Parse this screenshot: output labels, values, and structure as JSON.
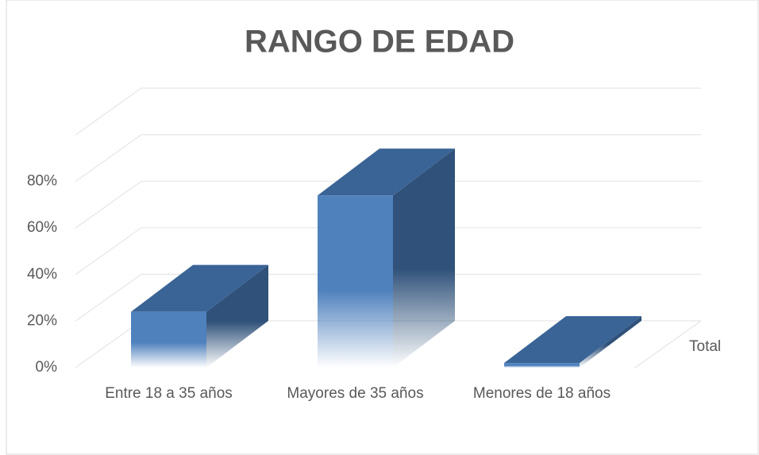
{
  "chart_data": {
    "type": "bar3d",
    "title": "RANGO DE EDAD",
    "categories": [
      "Entre 18 a 35 años",
      "Mayores de 35 años",
      "Menores de 18 años"
    ],
    "series": [
      {
        "name": "Total",
        "color": "#4f81bd",
        "values": [
          24,
          74,
          2
        ]
      }
    ],
    "ylim": [
      0,
      100
    ],
    "yticks": [
      {
        "value": 0,
        "label": "0%"
      },
      {
        "value": 20,
        "label": "20%"
      },
      {
        "value": 40,
        "label": "40%"
      },
      {
        "value": 60,
        "label": "60%"
      },
      {
        "value": 80,
        "label": "80%"
      }
    ],
    "grid": true,
    "legend": "right"
  }
}
